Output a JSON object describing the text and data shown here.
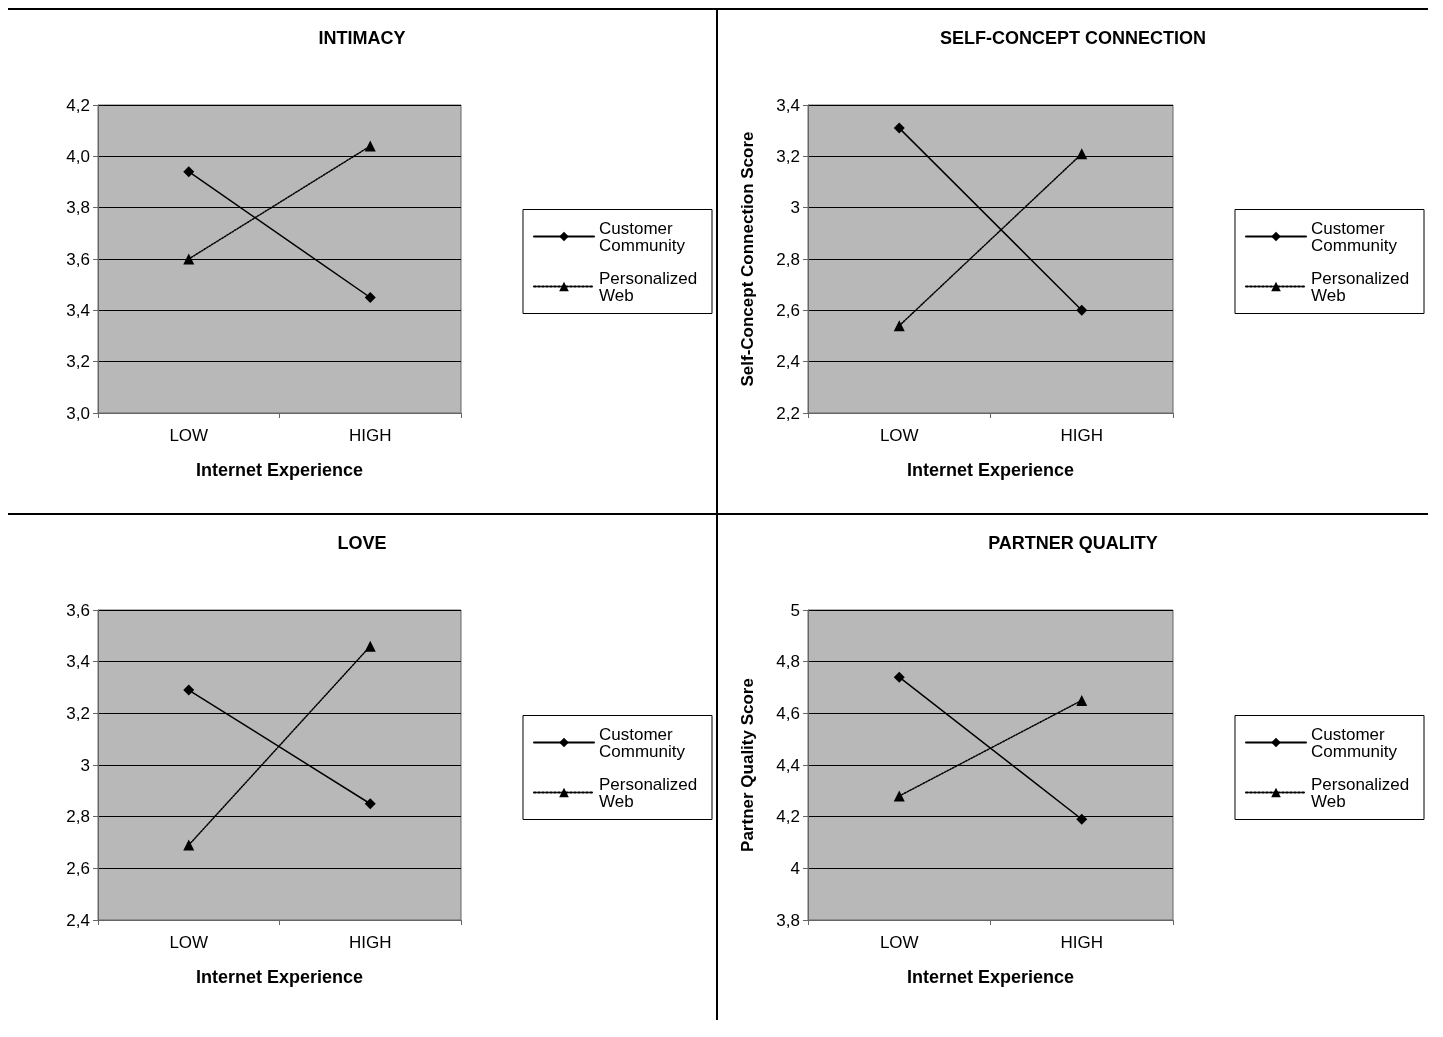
{
  "chart_data": [
    {
      "type": "line",
      "title": "INTIMACY",
      "xlabel": "Internet Experience",
      "categories": [
        "LOW",
        "HIGH"
      ],
      "ylim": [
        3.0,
        4.2
      ],
      "yticks": [
        {
          "value": 3.0,
          "label": "3,0"
        },
        {
          "value": 3.2,
          "label": "3,2"
        },
        {
          "value": 3.4,
          "label": "3,4"
        },
        {
          "value": 3.6,
          "label": "3,6"
        },
        {
          "value": 3.8,
          "label": "3,8"
        },
        {
          "value": 4.0,
          "label": "4,0"
        },
        {
          "value": 4.2,
          "label": "4,2"
        }
      ],
      "grid": "y",
      "legend": "right",
      "series": [
        {
          "name": "Customer Community",
          "color": "#000000",
          "marker": "diamond",
          "line_style": "solid",
          "values": [
            3.94,
            3.45
          ]
        },
        {
          "name": "Personalized Web",
          "color": "#000000",
          "marker": "triangle",
          "line_style": "dotted",
          "values": [
            3.6,
            4.04
          ]
        }
      ]
    },
    {
      "type": "line",
      "title": "SELF-CONCEPT CONNECTION",
      "xlabel": "Internet Experience",
      "ylabel": "Self-Concept Connection Score",
      "categories": [
        "LOW",
        "HIGH"
      ],
      "ylim": [
        2.2,
        3.4
      ],
      "yticks": [
        {
          "value": 2.2,
          "label": "2,2"
        },
        {
          "value": 2.4,
          "label": "2,4"
        },
        {
          "value": 2.6,
          "label": "2,6"
        },
        {
          "value": 2.8,
          "label": "2,8"
        },
        3,
        {
          "value": 3.2,
          "label": "3,2"
        },
        {
          "value": 3.4,
          "label": "3,4"
        }
      ],
      "grid": "y",
      "legend": "right",
      "series": [
        {
          "name": "Customer Community",
          "color": "#000000",
          "marker": "diamond",
          "line_style": "solid",
          "values": [
            3.31,
            2.6
          ]
        },
        {
          "name": "Personalized Web",
          "color": "#000000",
          "marker": "triangle",
          "line_style": "dotted",
          "values": [
            2.54,
            3.21
          ]
        }
      ]
    },
    {
      "type": "line",
      "title": "LOVE",
      "xlabel": "Internet Experience",
      "categories": [
        "LOW",
        "HIGH"
      ],
      "ylim": [
        2.4,
        3.6
      ],
      "yticks": [
        {
          "value": 2.4,
          "label": "2,4"
        },
        {
          "value": 2.6,
          "label": "2,6"
        },
        {
          "value": 2.8,
          "label": "2,8"
        },
        3,
        {
          "value": 3.2,
          "label": "3,2"
        },
        {
          "value": 3.4,
          "label": "3,4"
        },
        {
          "value": 3.6,
          "label": "3,6"
        }
      ],
      "grid": "y",
      "legend": "right",
      "series": [
        {
          "name": "Customer Community",
          "color": "#000000",
          "marker": "diamond",
          "line_style": "solid",
          "values": [
            3.29,
            2.85
          ]
        },
        {
          "name": "Personalized Web",
          "color": "#000000",
          "marker": "triangle",
          "line_style": "dotted",
          "values": [
            2.69,
            3.46
          ]
        }
      ]
    },
    {
      "type": "line",
      "title": "PARTNER QUALITY",
      "xlabel": "Internet Experience",
      "ylabel": "Partner Quality Score",
      "categories": [
        "LOW",
        "HIGH"
      ],
      "ylim": [
        3.8,
        5
      ],
      "yticks": [
        {
          "value": 3.8,
          "label": "3,8"
        },
        4,
        {
          "value": 4.2,
          "label": "4,2"
        },
        {
          "value": 4.4,
          "label": "4,4"
        },
        {
          "value": 4.6,
          "label": "4,6"
        },
        {
          "value": 4.8,
          "label": "4,8"
        },
        5
      ],
      "grid": "y",
      "legend": "right",
      "series": [
        {
          "name": "Customer Community",
          "color": "#000000",
          "marker": "diamond",
          "line_style": "solid",
          "values": [
            4.74,
            4.19
          ]
        },
        {
          "name": "Personalized Web",
          "color": "#000000",
          "marker": "triangle",
          "line_style": "dotted",
          "values": [
            4.28,
            4.65
          ]
        }
      ]
    }
  ]
}
